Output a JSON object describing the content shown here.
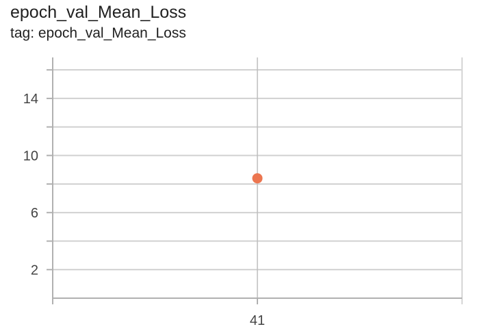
{
  "header": {
    "title": "epoch_val_Mean_Loss",
    "subtitle": "tag: epoch_val_Mean_Loss"
  },
  "colors": {
    "series": "#ec7650",
    "grid": "#d0d0d0",
    "axis": "#b0b0b0"
  },
  "chart_data": {
    "type": "scatter",
    "title": "epoch_val_Mean_Loss",
    "subtitle": "tag: epoch_val_Mean_Loss",
    "xlabel": "",
    "ylabel": "",
    "xlim": [
      40,
      42
    ],
    "ylim": [
      0,
      16.2
    ],
    "x_ticks": [
      41
    ],
    "x_tick_labels": [
      "41"
    ],
    "y_ticks": [
      2,
      6,
      10,
      14
    ],
    "y_tick_labels": [
      "2",
      "6",
      "10",
      "14"
    ],
    "y_grid": [
      2,
      4,
      6,
      8,
      10,
      12,
      14,
      16
    ],
    "grid": true,
    "series": [
      {
        "name": "epoch_val_Mean_Loss",
        "x": [
          41
        ],
        "y": [
          8.4
        ]
      }
    ]
  }
}
